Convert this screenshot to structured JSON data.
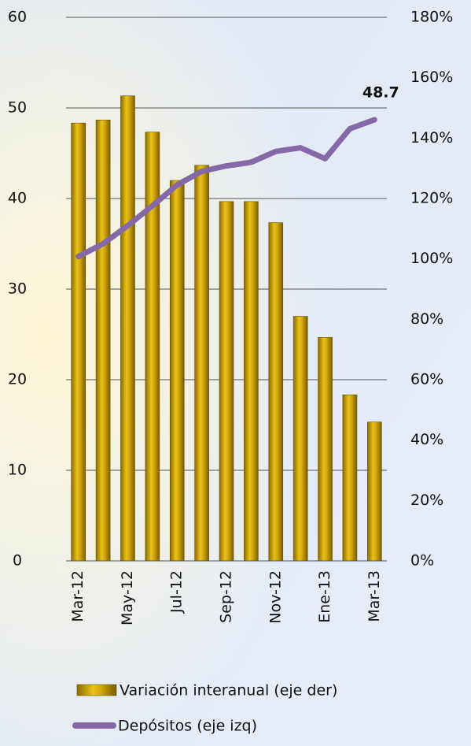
{
  "chart_data": {
    "type": "bar",
    "categories": [
      "Mar-12",
      null,
      "May-12",
      null,
      "Jul-12",
      null,
      "Sep-12",
      null,
      "Nov-12",
      null,
      "Ene-13",
      null,
      "Mar-13"
    ],
    "series": [
      {
        "name": "Variación interanual (eje der)",
        "color": "#c9a100",
        "axis": "y2",
        "type": "bar",
        "values": [
          145,
          146,
          154,
          142,
          126,
          131,
          119,
          119,
          112,
          81,
          74,
          55,
          46
        ]
      },
      {
        "name": "Depósitos (eje izq)",
        "color": "#8468a8",
        "type": "line",
        "values": [
          33.6,
          35.0,
          37.0,
          39.2,
          41.5,
          43.0,
          43.6,
          44.0,
          45.2,
          45.6,
          44.4,
          47.7,
          48.7
        ],
        "value_labels": [
          null,
          null,
          null,
          null,
          null,
          null,
          null,
          null,
          null,
          null,
          null,
          null,
          "48.7"
        ]
      }
    ],
    "ylim": [
      0,
      60
    ],
    "yticks": [
      0,
      10,
      20,
      30,
      40,
      50,
      60
    ],
    "y2lim": [
      0,
      180
    ],
    "y2ticks": [
      {
        "value": 0,
        "label": "0%"
      },
      {
        "value": 20,
        "label": "20%"
      },
      {
        "value": 40,
        "label": "40%"
      },
      {
        "value": 60,
        "label": "60%"
      },
      {
        "value": 80,
        "label": "80%"
      },
      {
        "value": 100,
        "label": "100%"
      },
      {
        "value": 120,
        "label": "120%"
      },
      {
        "value": 140,
        "label": "140%"
      },
      {
        "value": 160,
        "label": "160%"
      },
      {
        "value": 180,
        "label": "180%"
      }
    ],
    "grid": true
  }
}
